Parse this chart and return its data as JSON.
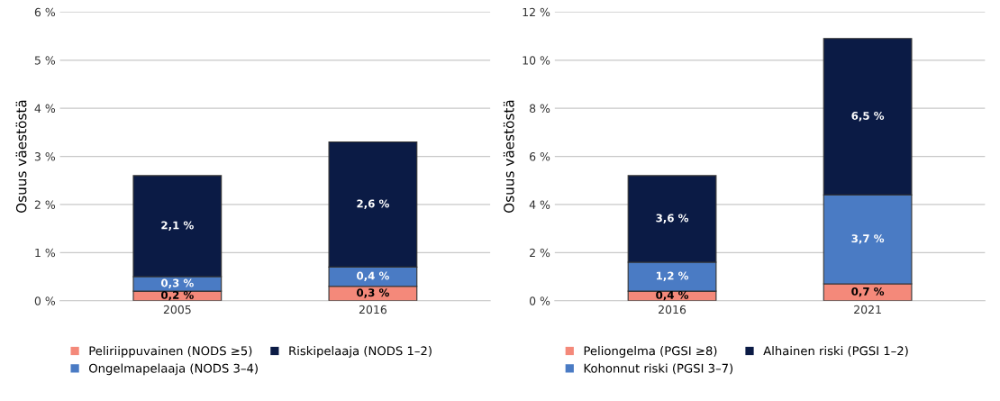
{
  "chart_data": [
    {
      "type": "bar",
      "stacked": true,
      "ylabel": "Osuus väestöstä",
      "categories": [
        "2005",
        "2016"
      ],
      "ylim": [
        0,
        6
      ],
      "yticks": [
        {
          "value": 0,
          "label": "0 %"
        },
        {
          "value": 1,
          "label": "1 %"
        },
        {
          "value": 2,
          "label": "2 %"
        },
        {
          "value": 3,
          "label": "3 %"
        },
        {
          "value": 4,
          "label": "4 %"
        },
        {
          "value": 5,
          "label": "5 %"
        },
        {
          "value": 6,
          "label": "6 %"
        }
      ],
      "grid": "y",
      "legend": "bottom",
      "series": [
        {
          "name": "Peliriippuvainen (NODS ≥5)",
          "color": "#f4897a",
          "values": [
            0.2,
            0.3
          ],
          "value_labels": [
            "0,2 %",
            "0,3 %"
          ]
        },
        {
          "name": "Ongelmapelaaja (NODS 3–4)",
          "color": "#4a7bc4",
          "values": [
            0.3,
            0.4
          ],
          "value_labels": [
            "0,3 %",
            "0,4 %"
          ]
        },
        {
          "name": "Riskipelaaja (NODS 1–2)",
          "color": "#0b1b45",
          "values": [
            2.1,
            2.6
          ],
          "value_labels": [
            "2,1 %",
            "2,6 %"
          ]
        }
      ]
    },
    {
      "type": "bar",
      "stacked": true,
      "ylabel": "Osuus väestöstä",
      "categories": [
        "2016",
        "2021"
      ],
      "ylim": [
        0,
        12
      ],
      "yticks": [
        {
          "value": 0,
          "label": "0 %"
        },
        {
          "value": 2,
          "label": "2 %"
        },
        {
          "value": 4,
          "label": "4 %"
        },
        {
          "value": 6,
          "label": "6 %"
        },
        {
          "value": 8,
          "label": "8 %"
        },
        {
          "value": 10,
          "label": "10 %"
        },
        {
          "value": 12,
          "label": "12 %"
        }
      ],
      "grid": "y",
      "legend": "bottom",
      "series": [
        {
          "name": "Peliongelma (PGSI ≥8)",
          "color": "#f4897a",
          "values": [
            0.4,
            0.7
          ],
          "value_labels": [
            "0,4 %",
            "0,7 %"
          ]
        },
        {
          "name": "Kohonnut riski (PGSI 3–7)",
          "color": "#4a7bc4",
          "values": [
            1.2,
            3.7
          ],
          "value_labels": [
            "1,2 %",
            "3,7 %"
          ]
        },
        {
          "name": "Alhainen riski (PGSI 1–2)",
          "color": "#0b1b45",
          "values": [
            3.6,
            6.5
          ],
          "value_labels": [
            "3,6 %",
            "6,5 %"
          ]
        }
      ]
    }
  ]
}
